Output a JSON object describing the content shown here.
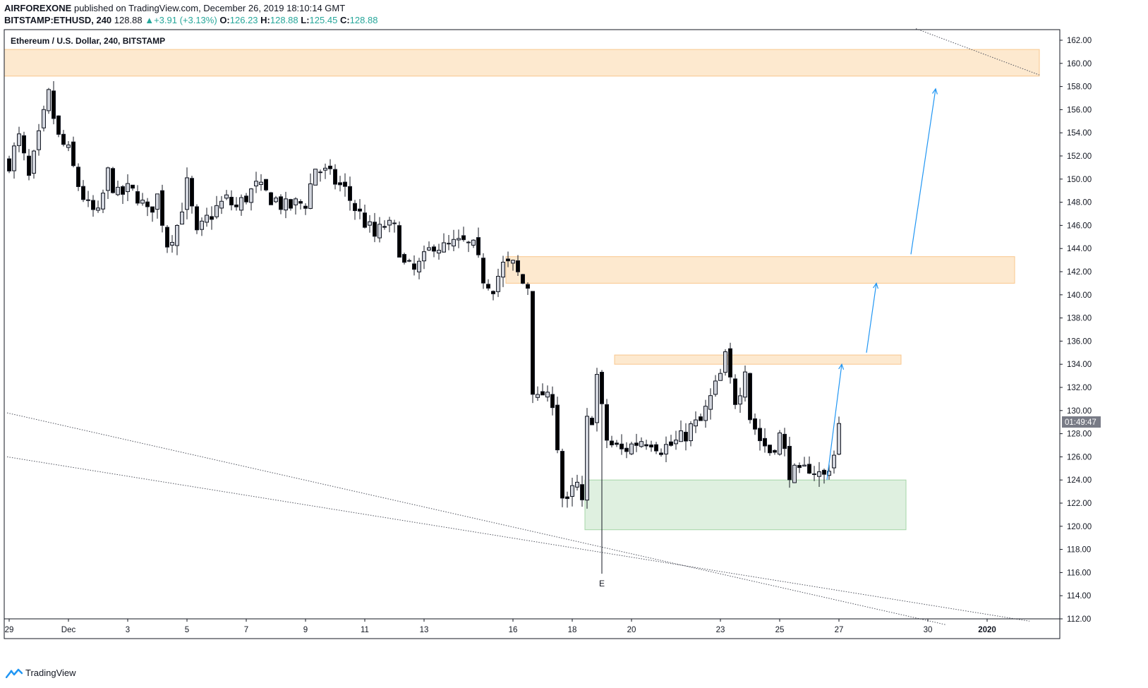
{
  "header": {
    "author": "AIRFOREXONE",
    "published_text": "published on TradingView.com, December 26, 2019 18:10:14 GMT",
    "symbol": "BITSTAMP:ETHUSD, 240",
    "last": "128.88",
    "change_arrow": "▲",
    "change": "+3.91 (+3.13%)",
    "o_label": "O:",
    "o_value": "126.23",
    "h_label": "H:",
    "h_value": "128.88",
    "l_label": "L:",
    "l_value": "125.45",
    "c_label": "C:",
    "c_value": "128.88"
  },
  "chart_title": "Ethereum / U.S. Dollar, 240, BITSTAMP",
  "countdown": "01:49:47",
  "marker_label": "E",
  "footer": {
    "brand": "TradingView",
    "icon": "tradingview-logo-icon"
  },
  "colors": {
    "accent": "#2196f3",
    "resistance_zone": "#fde9cf",
    "resistance_border": "#f9c78e",
    "support_zone": "#dff0e0",
    "support_border": "#a5d6a7",
    "bull_body": "#d1d4dc",
    "bear_body": "#000000",
    "countdown_bg": "#787b86"
  },
  "chart_data": {
    "type": "candlestick",
    "timeframe": "240",
    "ylim": [
      112,
      163
    ],
    "y_ticks": [
      "162.00",
      "160.00",
      "158.00",
      "156.00",
      "154.00",
      "152.00",
      "150.00",
      "148.00",
      "146.00",
      "144.00",
      "142.00",
      "140.00",
      "138.00",
      "136.00",
      "134.00",
      "132.00",
      "130.00",
      "128.00",
      "126.00",
      "124.00",
      "122.00",
      "120.00",
      "118.00",
      "116.00",
      "114.00",
      "112.00"
    ],
    "x_ticks": [
      {
        "label": "29",
        "bar": 0
      },
      {
        "label": "Dec",
        "bar": 12
      },
      {
        "label": "3",
        "bar": 24
      },
      {
        "label": "5",
        "bar": 36
      },
      {
        "label": "7",
        "bar": 48
      },
      {
        "label": "9",
        "bar": 60
      },
      {
        "label": "11",
        "bar": 72
      },
      {
        "label": "13",
        "bar": 84
      },
      {
        "label": "16",
        "bar": 102
      },
      {
        "label": "18",
        "bar": 114
      },
      {
        "label": "20",
        "bar": 126
      },
      {
        "label": "23",
        "bar": 144
      },
      {
        "label": "25",
        "bar": 156
      },
      {
        "label": "27",
        "bar": 168
      },
      {
        "label": "30",
        "bar": 186
      },
      {
        "label": "2020",
        "bar": 198
      }
    ],
    "price_path": [
      [
        0,
        151.5
      ],
      [
        2,
        153.5
      ],
      [
        4,
        150.0
      ],
      [
        6,
        153.5
      ],
      [
        8,
        157.2
      ],
      [
        10,
        153.5
      ],
      [
        12,
        152.3
      ],
      [
        14,
        149.5
      ],
      [
        16,
        147.5
      ],
      [
        18,
        146.8
      ],
      [
        20,
        150.5
      ],
      [
        22,
        148.5
      ],
      [
        24,
        149.0
      ],
      [
        26,
        148.6
      ],
      [
        28,
        147.0
      ],
      [
        30,
        148.5
      ],
      [
        32,
        144.5
      ],
      [
        34,
        146.0
      ],
      [
        36,
        149.5
      ],
      [
        38,
        145.0
      ],
      [
        40,
        146.5
      ],
      [
        42,
        147.5
      ],
      [
        44,
        148.2
      ],
      [
        46,
        147.5
      ],
      [
        48,
        148.5
      ],
      [
        50,
        149.3
      ],
      [
        52,
        148.7
      ],
      [
        54,
        148.2
      ],
      [
        56,
        147.5
      ],
      [
        58,
        147.8
      ],
      [
        60,
        148.0
      ],
      [
        62,
        151.0
      ],
      [
        64,
        150.5
      ],
      [
        66,
        149.8
      ],
      [
        68,
        149.0
      ],
      [
        70,
        147.5
      ],
      [
        72,
        146.3
      ],
      [
        74,
        145.0
      ],
      [
        76,
        146.0
      ],
      [
        78,
        145.6
      ],
      [
        80,
        142.5
      ],
      [
        82,
        142.0
      ],
      [
        84,
        143.0
      ],
      [
        86,
        144.5
      ],
      [
        88,
        144.0
      ],
      [
        90,
        144.3
      ],
      [
        92,
        144.4
      ],
      [
        94,
        144.0
      ],
      [
        96,
        141.5
      ],
      [
        98,
        140.8
      ],
      [
        100,
        142.5
      ],
      [
        102,
        142.5
      ],
      [
        104,
        141.0
      ],
      [
        105,
        140.8
      ],
      [
        106,
        132.0
      ],
      [
        107,
        130.8
      ],
      [
        108,
        131.5
      ],
      [
        109,
        130.8
      ],
      [
        110,
        131.0
      ],
      [
        111,
        127.0
      ],
      [
        112,
        122.5
      ],
      [
        113,
        121.8
      ],
      [
        114,
        123.0
      ],
      [
        115,
        123.5
      ],
      [
        116,
        121.7
      ],
      [
        117,
        129.0
      ],
      [
        118,
        129.5
      ],
      [
        119,
        133.0
      ],
      [
        120,
        130.0
      ],
      [
        121,
        127.5
      ],
      [
        122,
        127.0
      ],
      [
        124,
        126.5
      ],
      [
        126,
        127.0
      ],
      [
        128,
        127.5
      ],
      [
        130,
        127.5
      ],
      [
        132,
        126.8
      ],
      [
        134,
        127.0
      ],
      [
        136,
        127.5
      ],
      [
        138,
        128.5
      ],
      [
        140,
        129.0
      ],
      [
        142,
        131.0
      ],
      [
        144,
        133.0
      ],
      [
        145,
        134.5
      ],
      [
        146,
        132.5
      ],
      [
        147,
        131.0
      ],
      [
        148,
        132.0
      ],
      [
        149,
        134.0
      ],
      [
        150,
        129.5
      ],
      [
        152,
        127.5
      ],
      [
        154,
        126.5
      ],
      [
        156,
        127.8
      ],
      [
        158,
        124.8
      ],
      [
        160,
        124.3
      ],
      [
        162,
        125.2
      ],
      [
        164,
        124.5
      ],
      [
        165,
        124.3
      ],
      [
        166,
        125.3
      ],
      [
        167,
        126.2
      ],
      [
        168,
        128.88
      ]
    ],
    "trendlines": [
      {
        "style": "dotted",
        "from": {
          "bar": 0,
          "price": 129.8
        },
        "to": {
          "bar": 190,
          "price": 111.5
        }
      },
      {
        "style": "dotted",
        "from": {
          "bar": 0,
          "price": 126.0
        },
        "to": {
          "bar": 207,
          "price": 111.8
        }
      },
      {
        "style": "dotted",
        "from": {
          "bar": 184,
          "price": 163.0
        },
        "to": {
          "bar": 209,
          "price": 159.0
        }
      }
    ],
    "zones": [
      {
        "kind": "resistance",
        "from_bar": -1,
        "to_bar": 209,
        "low": 158.9,
        "high": 161.2
      },
      {
        "kind": "resistance",
        "from_bar": 101,
        "to_bar": 204,
        "low": 141.0,
        "high": 143.3
      },
      {
        "kind": "resistance",
        "from_bar": 123,
        "to_bar": 181,
        "low": 134.0,
        "high": 134.8
      },
      {
        "kind": "support",
        "from_bar": 117,
        "to_bar": 182,
        "low": 119.7,
        "high": 124.0
      }
    ],
    "arrows": [
      {
        "from": {
          "bar": 166,
          "price": 124.0
        },
        "to": {
          "bar": 169,
          "price": 134.0
        }
      },
      {
        "from": {
          "bar": 174,
          "price": 135.0
        },
        "to": {
          "bar": 176,
          "price": 141.0
        }
      },
      {
        "from": {
          "bar": 183,
          "price": 143.5
        },
        "to": {
          "bar": 188,
          "price": 157.8
        }
      }
    ],
    "marker": {
      "bar": 120,
      "price": 115.9
    }
  }
}
